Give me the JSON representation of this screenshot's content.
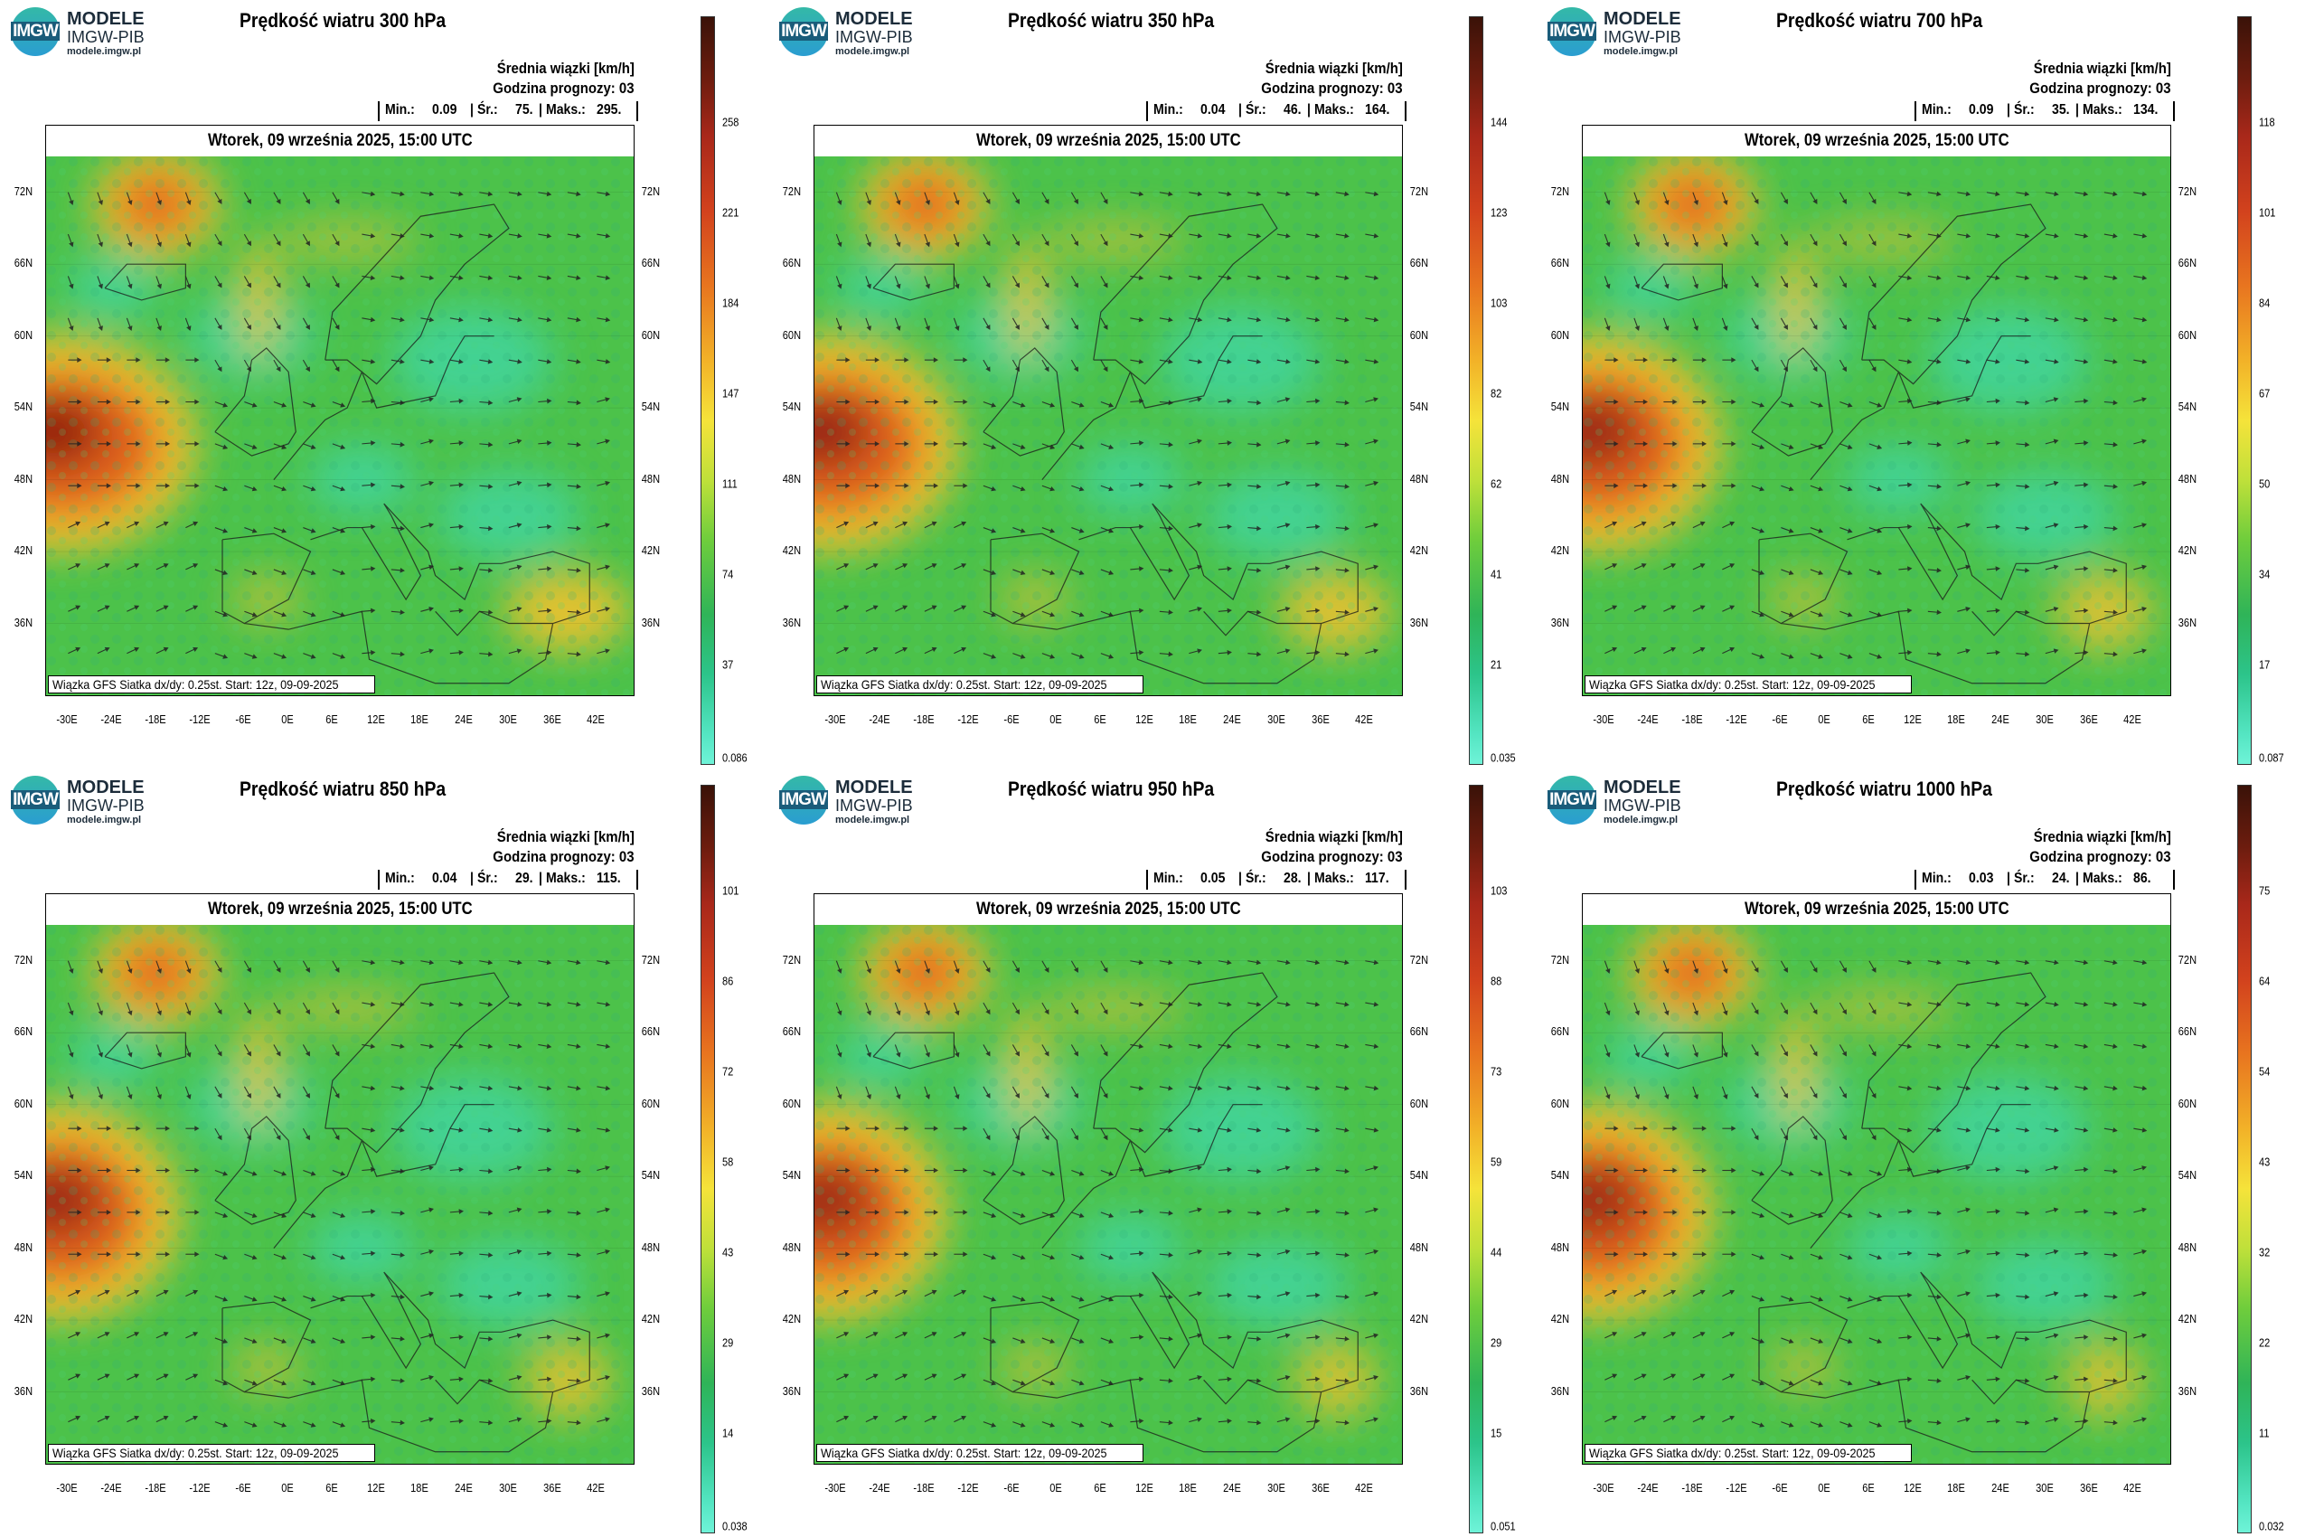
{
  "logo": {
    "badge": "IMGW",
    "title": "MODELE",
    "subtitle": "IMGW-PIB",
    "url": "modele.imgw.pl"
  },
  "common": {
    "units_label": "Średnia wiązki [km/h]",
    "forecast_hour_label": "Godzina prognozy: 03",
    "date": "Wtorek, 09 września 2025, 15:00 UTC",
    "source": "Wiązka GFS Siatka dx/dy: 0.25st. Start: 12z, 09-09-2025",
    "stats_min_label": "Min.:",
    "stats_avg_label": "Śr.:",
    "stats_max_label": "Maks.:",
    "lat_ticks": [
      "72N",
      "66N",
      "60N",
      "54N",
      "48N",
      "42N",
      "36N"
    ],
    "lon_ticks": [
      "-30E",
      "-24E",
      "-18E",
      "-12E",
      "-6E",
      "0E",
      "6E",
      "12E",
      "18E",
      "24E",
      "30E",
      "36E",
      "42E"
    ]
  },
  "panels": [
    {
      "title": "Prędkość wiatru 300 hPa",
      "min": "0.09",
      "avg": "75.",
      "max": "295.",
      "colorbar_ticks": [
        "258",
        "221",
        "184",
        "147",
        "111",
        "74",
        "37",
        "0.086"
      ],
      "jet": 1.0
    },
    {
      "title": "Prędkość wiatru 350 hPa",
      "min": "0.04",
      "avg": "46.",
      "max": "164.",
      "colorbar_ticks": [
        "144",
        "123",
        "103",
        "82",
        "62",
        "41",
        "21",
        "0.035"
      ],
      "jet": 0.85
    },
    {
      "title": "Prędkość wiatru 700 hPa",
      "min": "0.09",
      "avg": "35.",
      "max": "134.",
      "colorbar_ticks": [
        "118",
        "101",
        "84",
        "67",
        "50",
        "34",
        "17",
        "0.087"
      ],
      "jet": 0.7
    },
    {
      "title": "Prędkość wiatru 850 hPa",
      "min": "0.04",
      "avg": "29.",
      "max": "115.",
      "colorbar_ticks": [
        "101",
        "86",
        "72",
        "58",
        "43",
        "29",
        "14",
        "0.038"
      ],
      "jet": 0.6
    },
    {
      "title": "Prędkość wiatru 950 hPa",
      "min": "0.05",
      "avg": "28.",
      "max": "117.",
      "colorbar_ticks": [
        "103",
        "88",
        "73",
        "59",
        "44",
        "29",
        "15",
        "0.051"
      ],
      "jet": 0.55
    },
    {
      "title": "Prędkość wiatru 1000 hPa",
      "min": "0.03",
      "avg": "24.",
      "max": "86.",
      "colorbar_ticks": [
        "75",
        "64",
        "54",
        "43",
        "32",
        "22",
        "11",
        "0.032"
      ],
      "jet": 0.5
    }
  ],
  "colors": {
    "calm": "#3fd9b0",
    "moderate": "#4cc24a",
    "fast": "#f2c12e",
    "strong": "#e0601e",
    "extreme": "#8c1e10"
  }
}
